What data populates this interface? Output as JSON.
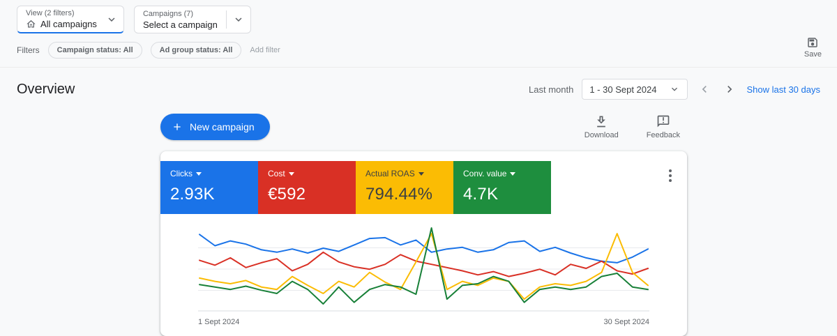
{
  "topbar": {
    "view_label": "View (2 filters)",
    "view_value": "All campaigns",
    "campaigns_label": "Campaigns (7)",
    "campaigns_value": "Select a campaign"
  },
  "filters": {
    "label": "Filters",
    "chips": [
      "Campaign status: All",
      "Ad group status: All"
    ],
    "add_filter": "Add filter",
    "save_label": "Save"
  },
  "header": {
    "title": "Overview",
    "period_label": "Last month",
    "date_range": "1 - 30 Sept 2024",
    "show_last": "Show last 30 days"
  },
  "actions": {
    "new_campaign": "New campaign",
    "download": "Download",
    "feedback": "Feedback"
  },
  "metrics": [
    {
      "label": "Clicks",
      "value": "2.93K",
      "color": "#1a73e8",
      "text_color": "#ffffff"
    },
    {
      "label": "Cost",
      "value": "€592",
      "color": "#d93025",
      "text_color": "#ffffff"
    },
    {
      "label": "Actual ROAS",
      "value": "794.44%",
      "color": "#fbbc04",
      "text_color": "#3c4043"
    },
    {
      "label": "Conv. value",
      "value": "4.7K",
      "color": "#1e8e3e",
      "text_color": "#ffffff"
    }
  ],
  "chart_data": {
    "type": "line",
    "x_axis_labels": [
      "1 Sept 2024",
      "30 Sept 2024"
    ],
    "x": [
      1,
      2,
      3,
      4,
      5,
      6,
      7,
      8,
      9,
      10,
      11,
      12,
      13,
      14,
      15,
      16,
      17,
      18,
      19,
      20,
      21,
      22,
      23,
      24,
      25,
      26,
      27,
      28,
      29,
      30
    ],
    "normalized_scale": true,
    "ylim": [
      0,
      100
    ],
    "grid": true,
    "legend": "none",
    "series": [
      {
        "name": "Clicks",
        "color": "#1a73e8",
        "values": [
          92,
          78,
          84,
          80,
          73,
          70,
          74,
          69,
          75,
          71,
          79,
          87,
          88,
          79,
          85,
          70,
          74,
          76,
          70,
          73,
          82,
          84,
          71,
          76,
          69,
          63,
          59,
          57,
          64,
          74
        ]
      },
      {
        "name": "Cost",
        "color": "#d93025",
        "values": [
          60,
          54,
          63,
          51,
          57,
          62,
          47,
          55,
          70,
          58,
          52,
          49,
          55,
          67,
          59,
          55,
          51,
          47,
          42,
          46,
          40,
          44,
          49,
          42,
          55,
          50,
          59,
          47,
          43,
          50
        ]
      },
      {
        "name": "Actual ROAS",
        "color": "#fbbc04",
        "values": [
          38,
          34,
          31,
          35,
          27,
          24,
          40,
          29,
          19,
          34,
          27,
          45,
          33,
          24,
          58,
          93,
          24,
          34,
          29,
          38,
          34,
          12,
          27,
          31,
          29,
          34,
          45,
          93,
          45,
          29
        ]
      },
      {
        "name": "Conv. value",
        "color": "#188038",
        "values": [
          30,
          27,
          24,
          28,
          23,
          19,
          34,
          24,
          6,
          27,
          8,
          24,
          30,
          27,
          18,
          100,
          12,
          29,
          31,
          40,
          34,
          8,
          24,
          27,
          24,
          27,
          40,
          44,
          27,
          24
        ]
      }
    ]
  }
}
